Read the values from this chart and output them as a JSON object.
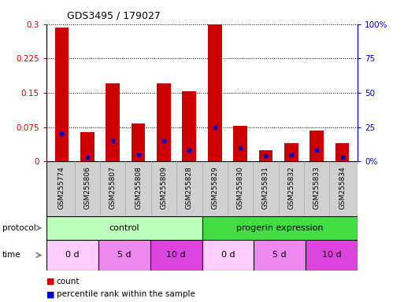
{
  "title": "GDS3495 / 179027",
  "samples": [
    "GSM255774",
    "GSM255806",
    "GSM255807",
    "GSM255808",
    "GSM255809",
    "GSM255828",
    "GSM255829",
    "GSM255830",
    "GSM255831",
    "GSM255832",
    "GSM255833",
    "GSM255834"
  ],
  "count_values": [
    0.293,
    0.065,
    0.17,
    0.083,
    0.17,
    0.153,
    0.3,
    0.078,
    0.025,
    0.04,
    0.068,
    0.04
  ],
  "percentile_values": [
    20,
    3,
    15,
    5,
    15,
    8,
    25,
    10,
    4,
    5,
    8,
    3
  ],
  "left_ylim": [
    0,
    0.3
  ],
  "right_ylim": [
    0,
    100
  ],
  "left_yticks": [
    0,
    0.075,
    0.15,
    0.225,
    0.3
  ],
  "left_yticklabels": [
    "0",
    "0.075",
    "0.15",
    "0.225",
    "0.3"
  ],
  "right_yticks": [
    0,
    25,
    50,
    75,
    100
  ],
  "right_yticklabels": [
    "0%",
    "25",
    "50",
    "75",
    "100%"
  ],
  "bar_color": "#cc0000",
  "dot_color": "#0000cc",
  "bg_color": "#ffffff",
  "ticklabel_bg": "#d0d0d0",
  "protocol_control_color": "#bbffbb",
  "protocol_progerin_color": "#44dd44",
  "time_colors": [
    "#ffccff",
    "#ee88ee",
    "#dd44dd"
  ],
  "protocol_groups": [
    {
      "label": "control",
      "start": 0,
      "end": 6
    },
    {
      "label": "progerin expression",
      "start": 6,
      "end": 12
    }
  ],
  "time_groups": [
    {
      "label": "0 d",
      "start": 0,
      "end": 2,
      "color_idx": 0
    },
    {
      "label": "5 d",
      "start": 2,
      "end": 4,
      "color_idx": 1
    },
    {
      "label": "10 d",
      "start": 4,
      "end": 6,
      "color_idx": 2
    },
    {
      "label": "0 d",
      "start": 6,
      "end": 8,
      "color_idx": 0
    },
    {
      "label": "5 d",
      "start": 8,
      "end": 10,
      "color_idx": 1
    },
    {
      "label": "10 d",
      "start": 10,
      "end": 12,
      "color_idx": 2
    }
  ],
  "legend_count_label": "count",
  "legend_pct_label": "percentile rank within the sample",
  "protocol_label": "protocol",
  "time_label": "time"
}
